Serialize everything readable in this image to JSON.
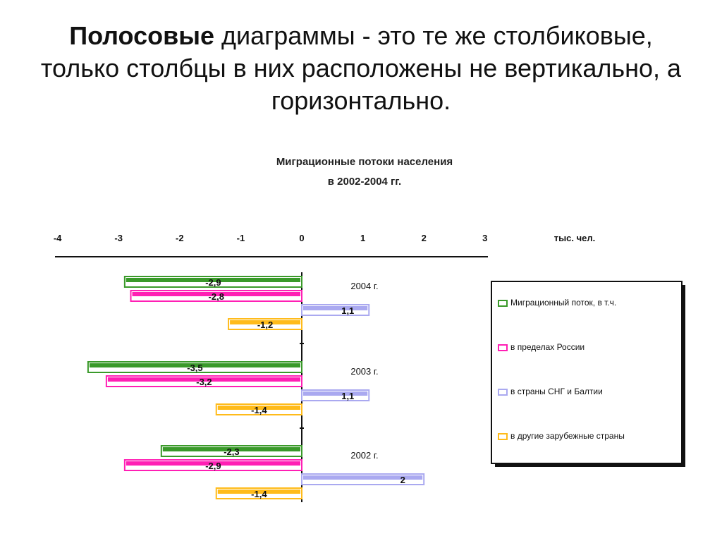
{
  "heading": {
    "bold_part": "Полосовые",
    "rest": " диаграммы - это те же столбиковые, только столбцы в них расположены не вертикально, а горизонтально."
  },
  "chart_data": {
    "type": "bar",
    "orientation": "horizontal",
    "title_line1": "Миграционные потоки населения",
    "title_line2": "в 2002-2004 гг.",
    "unit_label": "тыс. чел.",
    "xlim": [
      -4,
      3
    ],
    "x_ticks": [
      "-4",
      "-3",
      "-2",
      "-1",
      "0",
      "1",
      "2",
      "3"
    ],
    "categories": [
      "2004 г.",
      "2003 г.",
      "2002 г."
    ],
    "series": [
      {
        "name": "Миграционный поток, в т.ч.",
        "color": "#3a9a2a",
        "values": [
          -2.9,
          -3.5,
          -2.3
        ],
        "labels": [
          "-2,9",
          "-3,5",
          "-2,3"
        ]
      },
      {
        "name": "в пределах России",
        "color": "#ff1fb4",
        "values": [
          -2.8,
          -3.2,
          -2.9
        ],
        "labels": [
          "-2,8",
          "-3,2",
          "-2,9"
        ]
      },
      {
        "name": "в страны СНГ и Балтии",
        "color": "#aaa9f0",
        "values": [
          1.1,
          1.1,
          2.0
        ],
        "labels": [
          "1,1",
          "1,1",
          "2"
        ]
      },
      {
        "name": "в другие зарубежные страны",
        "color": "#ffbb1a",
        "values": [
          -1.2,
          -1.4,
          -1.4
        ],
        "labels": [
          "-1,2",
          "-1,4",
          "-1,4"
        ]
      }
    ],
    "legend_position": "right"
  }
}
